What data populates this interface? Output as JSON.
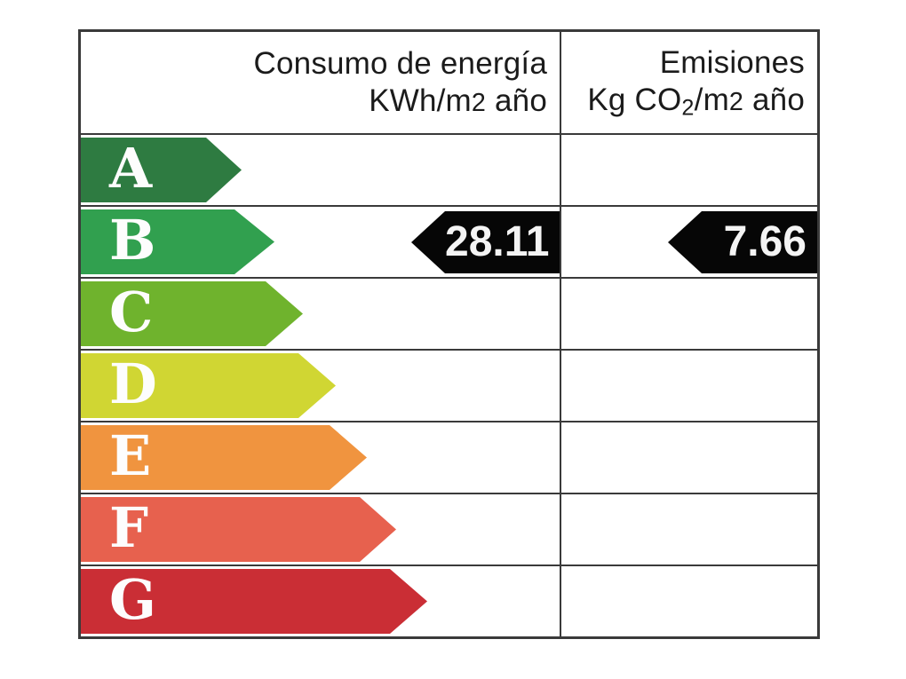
{
  "chart_data": {
    "type": "bar",
    "title": "Energy efficiency certificate scale",
    "categories": [
      "A",
      "B",
      "C",
      "D",
      "E",
      "F",
      "G"
    ],
    "columns": [
      {
        "key": "consumption",
        "label": "Consumo de energía KWh/m2 año"
      },
      {
        "key": "emissions",
        "label": "Emisiones Kg CO2/m2 año"
      }
    ],
    "current_rating": "B",
    "values": {
      "consumption_kwh_m2_year": 28.11,
      "emissions_kg_co2_m2_year": 7.66
    },
    "legend_position": "none",
    "grid": "table-lines"
  },
  "header": {
    "col1_line1": "Consumo de energía",
    "col1_line2": [
      {
        "t": "KWh/m"
      },
      {
        "t": "2",
        "style": "num2"
      },
      {
        "t": " año"
      }
    ],
    "col2_line1": "Emisiones",
    "col2_line2": [
      {
        "t": "Kg CO"
      },
      {
        "t": "2",
        "style": "sub2"
      },
      {
        "t": "/m"
      },
      {
        "t": "2",
        "style": "num2"
      },
      {
        "t": " año"
      }
    ]
  },
  "ratings": [
    {
      "letter": "A",
      "color": "#2e7b41",
      "body_width": 141,
      "tip_width": 40
    },
    {
      "letter": "B",
      "color": "#31a04f",
      "body_width": 173,
      "tip_width": 45
    },
    {
      "letter": "C",
      "color": "#6fb32d",
      "body_width": 208,
      "tip_width": 42
    },
    {
      "letter": "D",
      "color": "#d0d633",
      "body_width": 245,
      "tip_width": 42
    },
    {
      "letter": "E",
      "color": "#f0943f",
      "body_width": 280,
      "tip_width": 42
    },
    {
      "letter": "F",
      "color": "#e7614e",
      "body_width": 314,
      "tip_width": 41
    },
    {
      "letter": "G",
      "color": "#ca2e35",
      "body_width": 348,
      "tip_width": 42
    }
  ],
  "value_arrows": {
    "consumption": {
      "text": "28.11",
      "row_letter": "B",
      "width": 167,
      "tip_width": 38,
      "color": "#060606",
      "text_color": "#f4f4f4"
    },
    "emissions": {
      "text": "7.66",
      "row_letter": "B",
      "width": 168,
      "tip_width": 38,
      "color": "#060606",
      "text_color": "#f4f4f4"
    }
  },
  "style": {
    "line_color": "#3a3a3a",
    "letter_color": "#fdfdfd",
    "header_text_color": "#1b1b1b"
  }
}
